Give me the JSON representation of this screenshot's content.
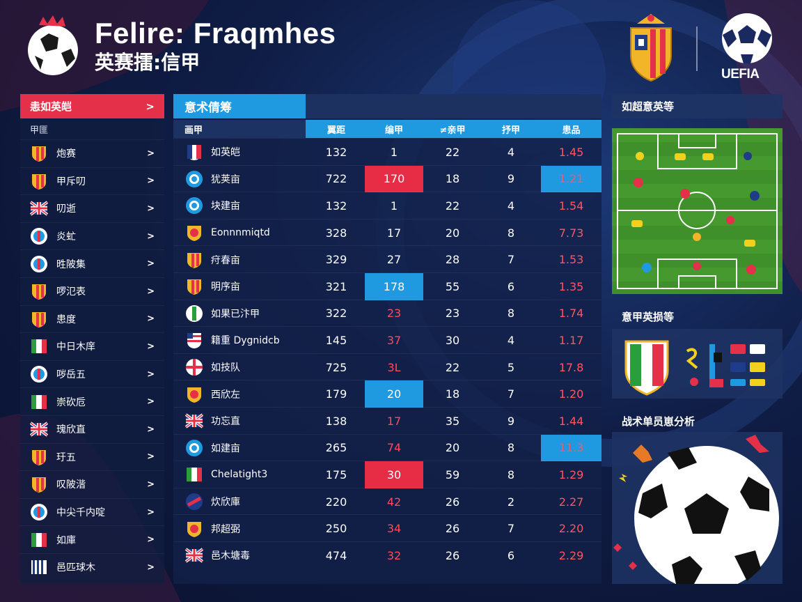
{
  "header": {
    "title": "Felire: Fraqmhes",
    "subtitle": "英赛擂:信甲",
    "league_name": "UEFIA"
  },
  "left_panel": {
    "title": "恚如英皑",
    "arrow": ">",
    "subheader": "甲匪",
    "teams": [
      {
        "name": "炮赛",
        "badge": "shield-red-yellow-icon"
      },
      {
        "name": "甲斥叨",
        "badge": "shield-red-yellow-icon"
      },
      {
        "name": "叨逝",
        "badge": "union-jack-icon"
      },
      {
        "name": "炎虻",
        "badge": "round-badge-icon"
      },
      {
        "name": "甠陂集",
        "badge": "round-badge-icon"
      },
      {
        "name": "啰氾表",
        "badge": "shield-red-yellow-icon"
      },
      {
        "name": "患度",
        "badge": "shield-red-yellow-icon"
      },
      {
        "name": "中日木庠",
        "badge": "italy-flag-icon"
      },
      {
        "name": "哕岳五",
        "badge": "round-badge-icon"
      },
      {
        "name": "崇砍卮",
        "badge": "italy-flag-icon"
      },
      {
        "name": "瑰欣直",
        "badge": "union-jack-icon"
      },
      {
        "name": "玗五",
        "badge": "shield-red-yellow-icon"
      },
      {
        "name": "叹陂湝",
        "badge": "shield-red-yellow-icon"
      },
      {
        "name": "中尖千内啶",
        "badge": "round-badge-icon"
      },
      {
        "name": "如庫",
        "badge": "italy-flag-icon"
      },
      {
        "name": "邑匹球木",
        "badge": "stripes-badge-icon"
      }
    ]
  },
  "table": {
    "tab_label": "意术倩筹",
    "columns": [
      "画甲",
      "翼距",
      "编甲",
      "≠亲甲",
      "抒甲",
      "患品"
    ],
    "rows": [
      {
        "badge": "france-shield-icon",
        "name": "如英皑",
        "c1": "132",
        "c2": "1",
        "c3": "22",
        "c4": "4",
        "c5": "1.45",
        "hl2": "",
        "hl5": ""
      },
      {
        "badge": "round-blue-badge-icon",
        "name": "犹荚亩",
        "c1": "722",
        "c2": "170",
        "c3": "18",
        "c4": "9",
        "c5": "1.21",
        "hl2": "red",
        "hl5": "blue"
      },
      {
        "badge": "round-blue-badge-icon",
        "name": "块建亩",
        "c1": "132",
        "c2": "1",
        "c3": "22",
        "c4": "4",
        "c5": "1.54",
        "hl2": "",
        "hl5": ""
      },
      {
        "badge": "lion-shield-icon",
        "name": "Eonnnmiqtd",
        "c1": "328",
        "c2": "17",
        "c3": "20",
        "c4": "8",
        "c5": "7.73",
        "hl2": "",
        "hl5": ""
      },
      {
        "badge": "shield-red-yellow-icon",
        "name": "疛春亩",
        "c1": "329",
        "c2": "27",
        "c3": "28",
        "c4": "7",
        "c5": "1.53",
        "hl2": "",
        "hl5": ""
      },
      {
        "badge": "shield-red-yellow-icon",
        "name": "明序亩",
        "c1": "321",
        "c2": "178",
        "c3": "55",
        "c4": "6",
        "c5": "1.35",
        "hl2": "blue",
        "hl5": ""
      },
      {
        "badge": "green-white-shield-icon",
        "name": "如果已汴甲",
        "c1": "322",
        "c2": "23",
        "c3": "23",
        "c4": "8",
        "c5": "1.74",
        "hl2": "",
        "hl5": ""
      },
      {
        "badge": "usa-shield-icon",
        "name": "籍重 Dygnidcb",
        "c1": "145",
        "c2": "37",
        "c3": "30",
        "c4": "4",
        "c5": "1.17",
        "hl2": "",
        "hl5": ""
      },
      {
        "badge": "england-round-icon",
        "name": "如技队",
        "c1": "725",
        "c2": "3L",
        "c3": "22",
        "c4": "5",
        "c5": "17.8",
        "hl2": "",
        "hl5": ""
      },
      {
        "badge": "lion-shield-icon",
        "name": "西欣左",
        "c1": "179",
        "c2": "20",
        "c3": "18",
        "c4": "7",
        "c5": "1.20",
        "hl2": "blue",
        "hl5": ""
      },
      {
        "badge": "union-jack-icon",
        "name": "功忘直",
        "c1": "138",
        "c2": "17",
        "c3": "35",
        "c4": "9",
        "c5": "1.44",
        "hl2": "",
        "hl5": ""
      },
      {
        "badge": "round-blue-badge-icon",
        "name": "如建亩",
        "c1": "265",
        "c2": "74",
        "c3": "20",
        "c4": "8",
        "c5": "11.3",
        "hl2": "",
        "hl5": "blue"
      },
      {
        "badge": "italy-flag-icon",
        "name": "Chelatight3",
        "c1": "175",
        "c2": "30",
        "c3": "59",
        "c4": "8",
        "c5": "1.29",
        "hl2": "red",
        "hl5": ""
      },
      {
        "badge": "round-red-blue-icon",
        "name": "炊欣庫",
        "c1": "220",
        "c2": "42",
        "c3": "26",
        "c4": "2",
        "c5": "2.27",
        "hl2": "",
        "hl5": ""
      },
      {
        "badge": "lion-shield-icon",
        "name": "邦超弼",
        "c1": "250",
        "c2": "34",
        "c3": "26",
        "c4": "7",
        "c5": "2.20",
        "hl2": "",
        "hl5": ""
      },
      {
        "badge": "union-jack-icon",
        "name": "邑木塘毒",
        "c1": "474",
        "c2": "32",
        "c3": "26",
        "c4": "6",
        "c5": "2.29",
        "hl2": "",
        "hl5": ""
      }
    ]
  },
  "right": {
    "pitch_title": "如超意英等",
    "badges_title": "意甲英损等",
    "ball_title": "战术单员崽分析"
  },
  "colors": {
    "accent_red": "#e5304a",
    "accent_blue": "#1f9ae0",
    "panel": "#132148",
    "pitch_green": "#3f8f2a"
  }
}
